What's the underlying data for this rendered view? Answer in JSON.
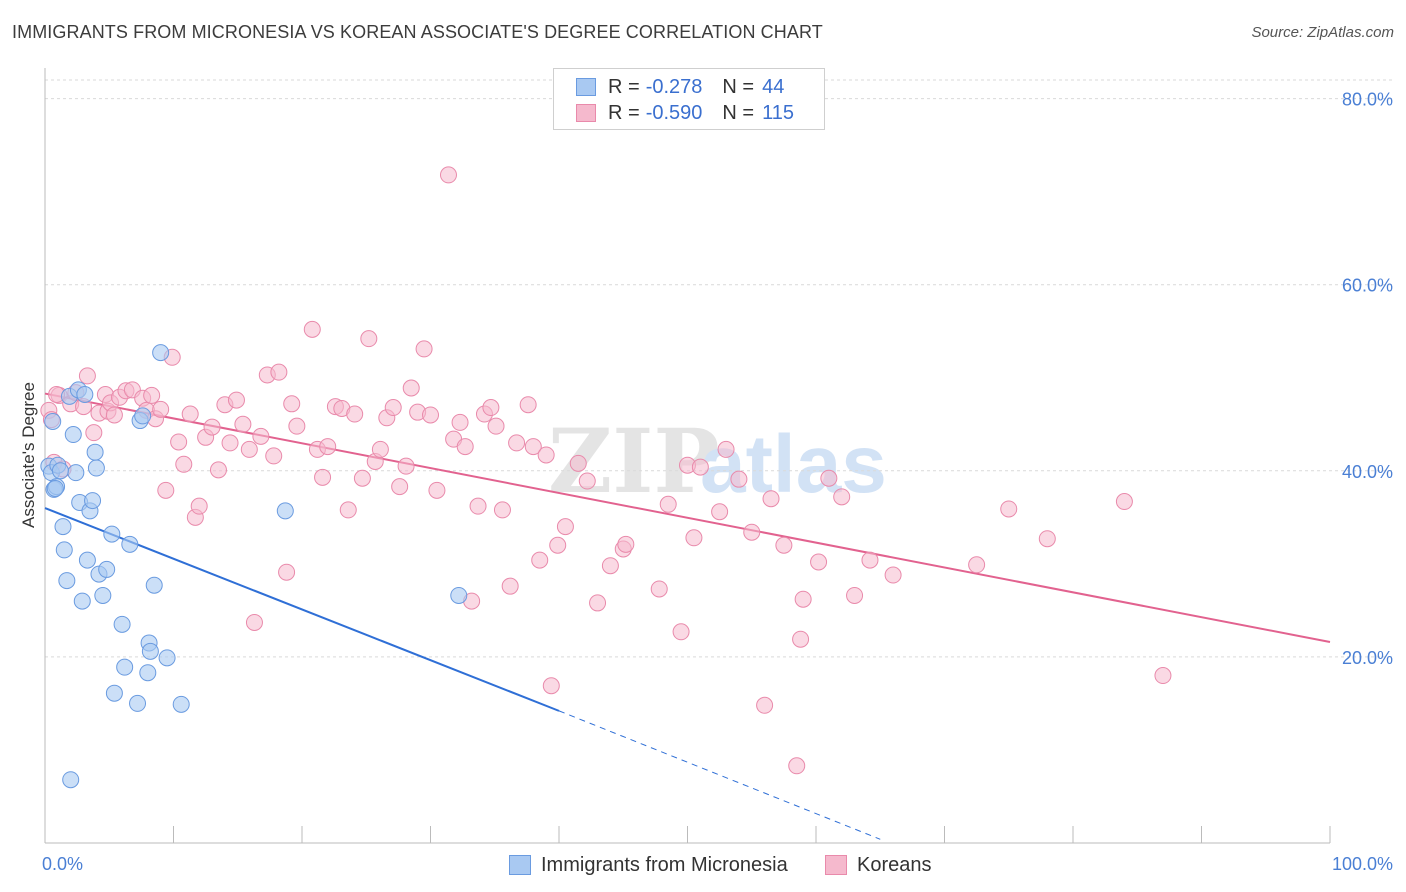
{
  "title": "IMMIGRANTS FROM MICRONESIA VS KOREAN ASSOCIATE'S DEGREE CORRELATION CHART",
  "source": "Source: ZipAtlas.com",
  "watermark": {
    "zip": "ZIP",
    "atlas": "atlas"
  },
  "legend": {
    "rows": [
      {
        "r_label": "R =",
        "r_value": "-0.278",
        "n_label": "N =",
        "n_value": "44"
      },
      {
        "r_label": "R =",
        "r_value": "-0.590",
        "n_label": "N =",
        "n_value": "115"
      }
    ]
  },
  "bottom_legend": [
    "Immigrants from Micronesia",
    "Koreans"
  ],
  "colors": {
    "blue_fill": "#a9c9f2",
    "blue_stroke": "#6a9be0",
    "blue_line": "#2f6fd6",
    "pink_fill": "#f5b9cd",
    "pink_stroke": "#e98aab",
    "pink_line": "#e2628f",
    "tick_label": "#4a7fd4",
    "grid": "#d9d9d9"
  },
  "chart_data": {
    "type": "scatter",
    "title": "IMMIGRANTS FROM MICRONESIA VS KOREAN ASSOCIATE'S DEGREE CORRELATION CHART",
    "xlabel": "",
    "ylabel": "Associate's Degree",
    "xlim": [
      0,
      100
    ],
    "ylim": [
      0,
      82
    ],
    "x_tick_labels": [
      "0.0%",
      "100.0%"
    ],
    "y_ticks": [
      20,
      40,
      60,
      80
    ],
    "y_tick_labels": [
      "20.0%",
      "40.0%",
      "60.0%",
      "80.0%"
    ],
    "grid": true,
    "series": [
      {
        "name": "Immigrants from Micronesia",
        "R": -0.278,
        "N": 44,
        "trend": {
          "x0": 0,
          "y0": 36.0,
          "x1": 40,
          "y1": 14.2,
          "dash_x1": 65,
          "dash_y1": 0.4
        },
        "points": [
          [
            0.3,
            40.5
          ],
          [
            0.5,
            39.8
          ],
          [
            0.6,
            45.3
          ],
          [
            0.7,
            38.0
          ],
          [
            0.9,
            38.3
          ],
          [
            1.0,
            40.6
          ],
          [
            1.4,
            34.0
          ],
          [
            1.5,
            31.5
          ],
          [
            1.7,
            28.2
          ],
          [
            1.9,
            48.0
          ],
          [
            2.0,
            6.8
          ],
          [
            2.2,
            43.9
          ],
          [
            2.4,
            39.8
          ],
          [
            2.6,
            48.7
          ],
          [
            2.7,
            36.6
          ],
          [
            2.9,
            26.0
          ],
          [
            3.1,
            48.2
          ],
          [
            3.3,
            30.4
          ],
          [
            3.5,
            35.7
          ],
          [
            3.7,
            36.8
          ],
          [
            3.9,
            42.0
          ],
          [
            4.0,
            40.3
          ],
          [
            4.2,
            28.9
          ],
          [
            4.5,
            26.6
          ],
          [
            4.8,
            29.4
          ],
          [
            5.2,
            33.2
          ],
          [
            5.4,
            16.1
          ],
          [
            6.0,
            23.5
          ],
          [
            6.2,
            18.9
          ],
          [
            6.6,
            32.1
          ],
          [
            7.2,
            15.0
          ],
          [
            7.4,
            45.4
          ],
          [
            7.6,
            45.9
          ],
          [
            8.0,
            18.3
          ],
          [
            8.1,
            21.5
          ],
          [
            8.2,
            20.6
          ],
          [
            8.5,
            27.7
          ],
          [
            9.0,
            52.7
          ],
          [
            9.5,
            19.9
          ],
          [
            10.6,
            14.9
          ],
          [
            18.7,
            35.7
          ],
          [
            32.2,
            26.6
          ],
          [
            0.8,
            38.1
          ],
          [
            1.2,
            40.0
          ]
        ]
      },
      {
        "name": "Koreans",
        "R": -0.59,
        "N": 115,
        "trend": {
          "x0": 0,
          "y0": 48.3,
          "x1": 100,
          "y1": 21.6
        },
        "points": [
          [
            0.3,
            46.5
          ],
          [
            0.5,
            45.5
          ],
          [
            0.7,
            40.9
          ],
          [
            1.1,
            48.1
          ],
          [
            1.4,
            40.2
          ],
          [
            2.0,
            47.2
          ],
          [
            2.4,
            48.4
          ],
          [
            3.0,
            46.9
          ],
          [
            3.3,
            50.2
          ],
          [
            3.8,
            44.1
          ],
          [
            4.2,
            46.2
          ],
          [
            4.7,
            48.2
          ],
          [
            4.9,
            46.4
          ],
          [
            5.1,
            47.3
          ],
          [
            5.4,
            46.0
          ],
          [
            5.8,
            47.9
          ],
          [
            6.3,
            48.6
          ],
          [
            6.8,
            48.7
          ],
          [
            7.6,
            47.8
          ],
          [
            7.9,
            46.5
          ],
          [
            8.3,
            48.1
          ],
          [
            8.6,
            45.6
          ],
          [
            9.0,
            46.6
          ],
          [
            9.4,
            37.9
          ],
          [
            9.9,
            52.2
          ],
          [
            10.4,
            43.1
          ],
          [
            10.8,
            40.7
          ],
          [
            11.3,
            46.1
          ],
          [
            11.7,
            35.0
          ],
          [
            12.0,
            36.2
          ],
          [
            12.5,
            43.6
          ],
          [
            13.0,
            44.7
          ],
          [
            13.5,
            40.1
          ],
          [
            14.0,
            47.1
          ],
          [
            14.4,
            43.0
          ],
          [
            14.9,
            47.6
          ],
          [
            15.4,
            45.0
          ],
          [
            15.9,
            42.3
          ],
          [
            16.3,
            23.7
          ],
          [
            16.8,
            43.7
          ],
          [
            17.3,
            50.3
          ],
          [
            17.8,
            41.6
          ],
          [
            18.2,
            50.6
          ],
          [
            18.8,
            29.1
          ],
          [
            19.2,
            47.2
          ],
          [
            19.6,
            44.8
          ],
          [
            20.8,
            55.2
          ],
          [
            21.2,
            42.3
          ],
          [
            21.6,
            39.3
          ],
          [
            22.0,
            42.6
          ],
          [
            22.6,
            46.9
          ],
          [
            23.1,
            46.7
          ],
          [
            23.6,
            35.8
          ],
          [
            24.1,
            46.1
          ],
          [
            24.7,
            39.2
          ],
          [
            25.2,
            54.2
          ],
          [
            25.7,
            41.0
          ],
          [
            26.1,
            42.3
          ],
          [
            26.6,
            45.7
          ],
          [
            27.1,
            46.8
          ],
          [
            27.6,
            38.3
          ],
          [
            28.1,
            40.5
          ],
          [
            28.5,
            48.9
          ],
          [
            29.0,
            46.3
          ],
          [
            29.5,
            53.1
          ],
          [
            30.0,
            46.0
          ],
          [
            30.5,
            37.9
          ],
          [
            31.4,
            71.8
          ],
          [
            31.8,
            43.4
          ],
          [
            32.3,
            45.2
          ],
          [
            32.7,
            42.6
          ],
          [
            33.2,
            26.0
          ],
          [
            33.7,
            36.2
          ],
          [
            34.2,
            46.1
          ],
          [
            34.7,
            46.8
          ],
          [
            35.1,
            44.8
          ],
          [
            35.6,
            35.8
          ],
          [
            36.2,
            27.6
          ],
          [
            36.7,
            43.0
          ],
          [
            37.6,
            47.1
          ],
          [
            38.0,
            42.6
          ],
          [
            38.5,
            30.4
          ],
          [
            39.0,
            41.7
          ],
          [
            39.4,
            16.9
          ],
          [
            39.9,
            32.0
          ],
          [
            40.5,
            34.0
          ],
          [
            41.5,
            40.8
          ],
          [
            42.2,
            38.9
          ],
          [
            43.0,
            25.8
          ],
          [
            44.0,
            29.8
          ],
          [
            45.0,
            31.6
          ],
          [
            45.2,
            32.1
          ],
          [
            47.8,
            27.3
          ],
          [
            48.5,
            36.4
          ],
          [
            49.5,
            22.7
          ],
          [
            50.0,
            40.6
          ],
          [
            50.5,
            32.8
          ],
          [
            51.0,
            40.4
          ],
          [
            52.5,
            35.6
          ],
          [
            53.0,
            42.3
          ],
          [
            54.0,
            39.1
          ],
          [
            55.0,
            33.4
          ],
          [
            56.0,
            14.8
          ],
          [
            56.5,
            37.0
          ],
          [
            57.5,
            32.0
          ],
          [
            58.5,
            8.3
          ],
          [
            58.8,
            21.9
          ],
          [
            59.0,
            26.2
          ],
          [
            60.2,
            30.2
          ],
          [
            61.0,
            39.2
          ],
          [
            62.0,
            37.2
          ],
          [
            63.0,
            26.6
          ],
          [
            64.2,
            30.4
          ],
          [
            66.0,
            28.8
          ],
          [
            72.5,
            29.9
          ],
          [
            75.0,
            35.9
          ],
          [
            78.0,
            32.7
          ],
          [
            84.0,
            36.7
          ],
          [
            87.0,
            18.0
          ],
          [
            0.9,
            48.2
          ]
        ]
      }
    ]
  }
}
